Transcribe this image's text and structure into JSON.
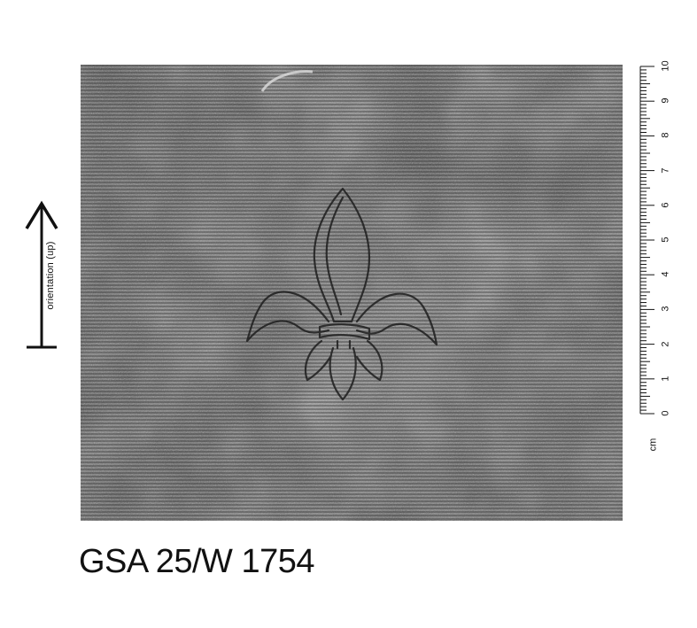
{
  "caption": "GSA 25/W 1754",
  "orientation": {
    "label": "orientation (up)",
    "icon": "up-arrow-icon"
  },
  "ruler": {
    "unit": "cm",
    "numbers": [
      "0",
      "1",
      "2",
      "3",
      "4",
      "5",
      "6",
      "7",
      "8",
      "9",
      "10"
    ]
  },
  "watermark": {
    "motif": "fleur-de-lis-icon"
  },
  "colors": {
    "paper_dark": "#4a4a4a",
    "paper_light": "#8c8c8c",
    "line": "#222222"
  }
}
